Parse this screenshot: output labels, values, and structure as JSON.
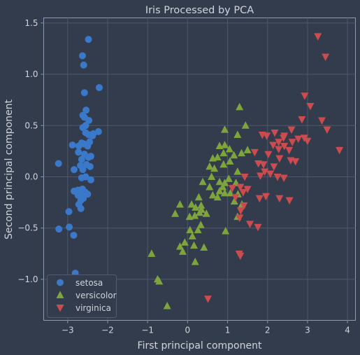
{
  "chart_data": {
    "type": "scatter",
    "title": "Iris Processed by PCA",
    "xlabel": "First principal component",
    "ylabel": "Second principal component",
    "xlim": [
      -3.6,
      4.2
    ],
    "ylim": [
      -1.4,
      1.55
    ],
    "xticks": [
      -3,
      -2,
      -1,
      0,
      1,
      2,
      3,
      4
    ],
    "yticks": [
      -1.0,
      -0.5,
      0.0,
      0.5,
      1.0,
      1.5
    ],
    "xtick_labels": [
      "−3",
      "−2",
      "−1",
      "0",
      "1",
      "2",
      "3",
      "4"
    ],
    "ytick_labels": [
      "−1.0",
      "−0.5",
      "0.0",
      "0.5",
      "1.0",
      "1.5"
    ],
    "grid": true,
    "legend_position": "lower-left",
    "series": [
      {
        "name": "setosa",
        "marker": "circle",
        "color": "#3a78c9",
        "points": [
          [
            -2.48,
            1.34
          ],
          [
            -2.63,
            1.18
          ],
          [
            -2.6,
            1.09
          ],
          [
            -2.21,
            0.87
          ],
          [
            -2.58,
            0.82
          ],
          [
            -2.54,
            0.65
          ],
          [
            -2.62,
            0.6
          ],
          [
            -2.58,
            0.58
          ],
          [
            -2.47,
            0.55
          ],
          [
            -2.55,
            0.5
          ],
          [
            -2.62,
            0.48
          ],
          [
            -2.55,
            0.43
          ],
          [
            -2.47,
            0.41
          ],
          [
            -2.38,
            0.4
          ],
          [
            -2.23,
            0.44
          ],
          [
            -2.36,
            0.42
          ],
          [
            -2.65,
            0.33
          ],
          [
            -2.72,
            0.3
          ],
          [
            -2.59,
            0.32
          ],
          [
            -2.5,
            0.3
          ],
          [
            -2.45,
            0.34
          ],
          [
            -2.88,
            0.31
          ],
          [
            -2.73,
            0.24
          ],
          [
            -2.58,
            0.22
          ],
          [
            -2.48,
            0.19
          ],
          [
            -2.42,
            0.2
          ],
          [
            -2.65,
            0.17
          ],
          [
            -3.23,
            0.13
          ],
          [
            -2.53,
            0.12
          ],
          [
            -2.68,
            0.11
          ],
          [
            -2.44,
            0.1
          ],
          [
            -2.84,
            0.07
          ],
          [
            -2.62,
            0.07
          ],
          [
            -2.55,
            0.0
          ],
          [
            -2.65,
            -0.01
          ],
          [
            -2.42,
            -0.03
          ],
          [
            -2.74,
            -0.13
          ],
          [
            -2.63,
            -0.12
          ],
          [
            -2.84,
            -0.14
          ],
          [
            -2.56,
            -0.15
          ],
          [
            -2.68,
            -0.16
          ],
          [
            -2.5,
            -0.17
          ],
          [
            -2.74,
            -0.18
          ],
          [
            -2.61,
            -0.21
          ],
          [
            -2.67,
            -0.23
          ],
          [
            -2.72,
            -0.27
          ],
          [
            -2.67,
            -0.31
          ],
          [
            -2.97,
            -0.34
          ],
          [
            -3.22,
            -0.51
          ],
          [
            -2.96,
            -0.49
          ],
          [
            -2.85,
            -0.57
          ],
          [
            -2.81,
            -0.94
          ]
        ]
      },
      {
        "name": "versicolor",
        "marker": "triangle-up",
        "color": "#7ea53b",
        "points": [
          [
            1.3,
            0.68
          ],
          [
            1.45,
            0.5
          ],
          [
            0.93,
            0.46
          ],
          [
            1.25,
            0.41
          ],
          [
            0.93,
            0.31
          ],
          [
            0.8,
            0.3
          ],
          [
            1.05,
            0.27
          ],
          [
            1.5,
            0.26
          ],
          [
            0.9,
            0.23
          ],
          [
            1.35,
            0.23
          ],
          [
            0.75,
            0.19
          ],
          [
            1.16,
            0.21
          ],
          [
            0.63,
            0.18
          ],
          [
            1.06,
            0.15
          ],
          [
            0.9,
            0.12
          ],
          [
            0.55,
            0.1
          ],
          [
            0.67,
            0.08
          ],
          [
            0.6,
            0.0
          ],
          [
            1.25,
            0.05
          ],
          [
            0.38,
            -0.05
          ],
          [
            1.03,
            -0.02
          ],
          [
            0.8,
            -0.05
          ],
          [
            0.93,
            -0.06
          ],
          [
            1.21,
            -0.06
          ],
          [
            0.55,
            -0.1
          ],
          [
            0.88,
            -0.1
          ],
          [
            0.8,
            -0.14
          ],
          [
            0.93,
            -0.16
          ],
          [
            1.26,
            -0.17
          ],
          [
            0.63,
            -0.18
          ],
          [
            1.07,
            -0.16
          ],
          [
            0.28,
            -0.2
          ],
          [
            0.75,
            -0.2
          ],
          [
            1.17,
            -0.24
          ],
          [
            0.1,
            -0.27
          ],
          [
            -0.19,
            -0.27
          ],
          [
            0.34,
            -0.28
          ],
          [
            1.36,
            -0.27
          ],
          [
            0.2,
            -0.3
          ],
          [
            0.35,
            -0.32
          ],
          [
            0.3,
            -0.35
          ],
          [
            0.47,
            -0.36
          ],
          [
            -0.31,
            -0.36
          ],
          [
            0.05,
            -0.39
          ],
          [
            0.18,
            -0.38
          ],
          [
            1.25,
            -0.39
          ],
          [
            0.33,
            -0.47
          ],
          [
            0.26,
            -0.52
          ],
          [
            0.06,
            -0.52
          ],
          [
            0.95,
            -0.53
          ],
          [
            0.12,
            -0.58
          ],
          [
            -0.07,
            -0.64
          ],
          [
            0.16,
            -0.67
          ],
          [
            -0.19,
            -0.68
          ],
          [
            0.41,
            -0.69
          ],
          [
            -0.12,
            -0.73
          ],
          [
            -0.9,
            -0.75
          ],
          [
            0.19,
            -0.83
          ],
          [
            -0.75,
            -1.0
          ],
          [
            -0.71,
            -1.02
          ],
          [
            -0.51,
            -1.26
          ]
        ]
      },
      {
        "name": "virginica",
        "marker": "triangle-down",
        "color": "#cc4b4e",
        "points": [
          [
            3.26,
            1.37
          ],
          [
            3.45,
            1.17
          ],
          [
            2.93,
            0.79
          ],
          [
            3.07,
            0.69
          ],
          [
            2.86,
            0.56
          ],
          [
            3.36,
            0.55
          ],
          [
            3.49,
            0.46
          ],
          [
            2.6,
            0.46
          ],
          [
            1.87,
            0.41
          ],
          [
            1.98,
            0.4
          ],
          [
            2.18,
            0.43
          ],
          [
            2.42,
            0.4
          ],
          [
            2.28,
            0.34
          ],
          [
            2.62,
            0.34
          ],
          [
            2.4,
            0.38
          ],
          [
            2.92,
            0.38
          ],
          [
            2.77,
            0.37
          ],
          [
            3.0,
            0.35
          ],
          [
            2.14,
            0.31
          ],
          [
            2.42,
            0.3
          ],
          [
            2.28,
            0.27
          ],
          [
            2.54,
            0.26
          ],
          [
            3.8,
            0.26
          ],
          [
            1.68,
            0.24
          ],
          [
            2.02,
            0.22
          ],
          [
            2.3,
            0.18
          ],
          [
            2.7,
            0.15
          ],
          [
            2.58,
            0.16
          ],
          [
            1.9,
            0.12
          ],
          [
            2.16,
            0.1
          ],
          [
            1.77,
            0.13
          ],
          [
            1.93,
            0.05
          ],
          [
            2.07,
            0.03
          ],
          [
            1.82,
            0.01
          ],
          [
            1.43,
            0.0
          ],
          [
            2.25,
            0.0
          ],
          [
            2.41,
            -0.01
          ],
          [
            1.32,
            -0.1
          ],
          [
            1.5,
            -0.12
          ],
          [
            1.12,
            -0.11
          ],
          [
            1.39,
            -0.15
          ],
          [
            1.96,
            -0.19
          ],
          [
            1.2,
            -0.2
          ],
          [
            1.8,
            -0.21
          ],
          [
            2.3,
            -0.21
          ],
          [
            2.55,
            -0.23
          ],
          [
            1.41,
            -0.28
          ],
          [
            1.33,
            -0.33
          ],
          [
            1.3,
            -0.4
          ],
          [
            1.56,
            -0.46
          ],
          [
            1.76,
            -0.49
          ],
          [
            1.29,
            -0.75
          ],
          [
            1.32,
            -0.77
          ],
          [
            0.51,
            -1.19
          ]
        ]
      }
    ]
  }
}
